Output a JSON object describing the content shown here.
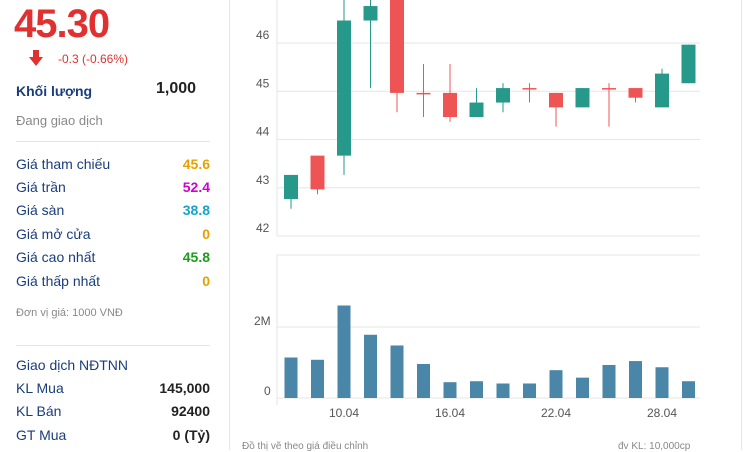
{
  "quote": {
    "price": "45.30",
    "change": "-0.3 (-0.66%)",
    "volume_label": "Khối lượng",
    "volume_value": "1,000",
    "status": "Đang giao dịch"
  },
  "price_rows": [
    {
      "label": "Giá tham chiếu",
      "value": "45.6",
      "color": "#e8a000"
    },
    {
      "label": "Giá trần",
      "value": "52.4",
      "color": "#d000d0"
    },
    {
      "label": "Giá sàn",
      "value": "38.8",
      "color": "#1aa3c8"
    },
    {
      "label": "Giá mở cửa",
      "value": "0",
      "color": "#e8a000"
    },
    {
      "label": "Giá cao nhất",
      "value": "45.8",
      "color": "#1a9e1a"
    },
    {
      "label": "Giá thấp nhất",
      "value": "0",
      "color": "#e8a000"
    }
  ],
  "unit_note": "Đơn vị giá: 1000 VNĐ",
  "foreign": {
    "title": "Giao dịch NĐTNN",
    "rows": [
      {
        "label": "KL Mua",
        "value": "145,000"
      },
      {
        "label": "KL Bán",
        "value": "92400"
      },
      {
        "label": "GT Mua",
        "value": "0 (Tỷ)"
      }
    ]
  },
  "chart_footer": {
    "left": "Đồ thị vẽ theo giá điều chỉnh",
    "right": "đv KL: 10,000cp"
  },
  "colors": {
    "up": "#26998a",
    "down": "#ef5454",
    "volume": "#4a86a8",
    "grid": "#e6e6e6"
  },
  "chart_data": [
    {
      "type": "candlestick",
      "y_ticks": [
        "42",
        "43",
        "44",
        "45",
        "46"
      ],
      "ylim": [
        41.9,
        46.9
      ],
      "x_ticks": [
        "10.04",
        "16.04",
        "22.04",
        "28.04"
      ],
      "candles": [
        {
          "open": 42.6,
          "close": 43.1,
          "high": 43.1,
          "low": 42.4
        },
        {
          "open": 43.5,
          "close": 42.8,
          "high": 43.5,
          "low": 42.7
        },
        {
          "open": 43.5,
          "close": 46.3,
          "high": 46.8,
          "low": 43.1
        },
        {
          "open": 46.3,
          "close": 46.6,
          "high": 46.8,
          "low": 44.9
        },
        {
          "open": 46.9,
          "close": 44.8,
          "high": 46.9,
          "low": 44.4
        },
        {
          "open": 44.8,
          "close": 44.8,
          "high": 45.4,
          "low": 44.3
        },
        {
          "open": 44.8,
          "close": 44.3,
          "high": 45.4,
          "low": 44.2
        },
        {
          "open": 44.3,
          "close": 44.6,
          "high": 44.9,
          "low": 44.3
        },
        {
          "open": 44.6,
          "close": 44.9,
          "high": 45.0,
          "low": 44.4
        },
        {
          "open": 44.9,
          "close": 44.9,
          "high": 45.0,
          "low": 44.6
        },
        {
          "open": 44.8,
          "close": 44.5,
          "high": 44.8,
          "low": 44.1
        },
        {
          "open": 44.5,
          "close": 44.9,
          "high": 44.9,
          "low": 44.5
        },
        {
          "open": 44.9,
          "close": 44.9,
          "high": 45.0,
          "low": 44.1
        },
        {
          "open": 44.9,
          "close": 44.7,
          "high": 44.9,
          "low": 44.6
        },
        {
          "open": 44.5,
          "close": 45.2,
          "high": 45.3,
          "low": 44.5
        },
        {
          "open": 45.0,
          "close": 45.8,
          "high": 45.8,
          "low": 45.0
        }
      ]
    },
    {
      "type": "bar",
      "y_ticks": [
        "0",
        "2M"
      ],
      "ylim": [
        0,
        3000000
      ],
      "x_ticks": [
        "10.04",
        "16.04",
        "22.04",
        "28.04"
      ],
      "values": [
        1000000,
        930000,
        2600000,
        1700000,
        1370000,
        800000,
        240000,
        270000,
        200000,
        200000,
        610000,
        380000,
        770000,
        890000,
        700000,
        270000
      ]
    }
  ]
}
